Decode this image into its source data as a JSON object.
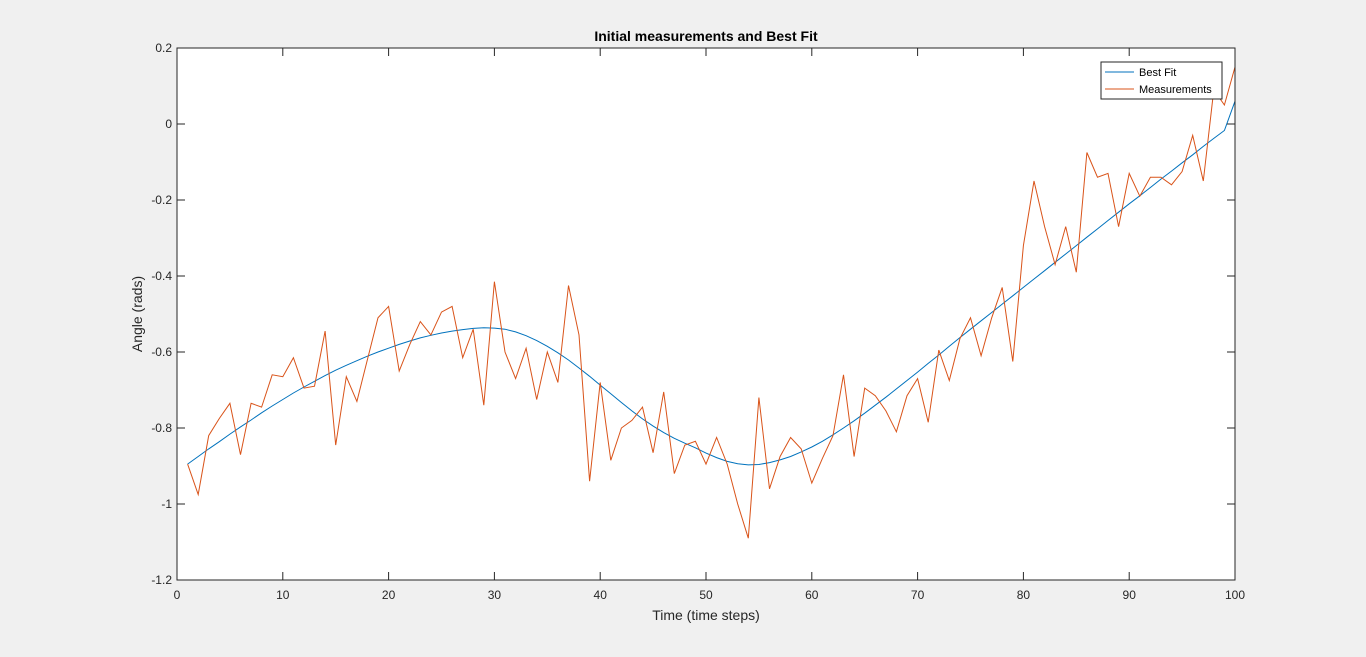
{
  "chart_data": {
    "type": "line",
    "title": "Initial measurements and Best Fit",
    "xlabel": "Time (time steps)",
    "ylabel": "Angle (rads)",
    "xlim": [
      0,
      100
    ],
    "ylim": [
      -1.2,
      0.2
    ],
    "x_ticks": [
      0,
      10,
      20,
      30,
      40,
      50,
      60,
      70,
      80,
      90,
      100
    ],
    "y_ticks": [
      -1.2,
      -1,
      -0.8,
      -0.6,
      -0.4,
      -0.2,
      0,
      0.2
    ],
    "x_tick_labels": [
      "0",
      "10",
      "20",
      "30",
      "40",
      "50",
      "60",
      "70",
      "80",
      "90",
      "100"
    ],
    "y_tick_labels": [
      "-1.2",
      "-1",
      "-0.8",
      "-0.6",
      "-0.4",
      "-0.2",
      "0",
      "0.2"
    ],
    "grid": false,
    "legend_position": "top-right",
    "x": [
      1,
      2,
      3,
      4,
      5,
      6,
      7,
      8,
      9,
      10,
      11,
      12,
      13,
      14,
      15,
      16,
      17,
      18,
      19,
      20,
      21,
      22,
      23,
      24,
      25,
      26,
      27,
      28,
      29,
      30,
      31,
      32,
      33,
      34,
      35,
      36,
      37,
      38,
      39,
      40,
      41,
      42,
      43,
      44,
      45,
      46,
      47,
      48,
      49,
      50,
      51,
      52,
      53,
      54,
      55,
      56,
      57,
      58,
      59,
      60,
      61,
      62,
      63,
      64,
      65,
      66,
      67,
      68,
      69,
      70,
      71,
      72,
      73,
      74,
      75,
      76,
      77,
      78,
      79,
      80,
      81,
      82,
      83,
      84,
      85,
      86,
      87,
      88,
      89,
      90,
      91,
      92,
      93,
      94,
      95,
      96,
      97,
      98,
      99,
      100
    ],
    "series": [
      {
        "name": "Best Fit",
        "color": "#0072bd",
        "values": [
          -0.895,
          -0.875,
          -0.855,
          -0.836,
          -0.816,
          -0.797,
          -0.779,
          -0.76,
          -0.742,
          -0.725,
          -0.708,
          -0.692,
          -0.677,
          -0.662,
          -0.648,
          -0.635,
          -0.623,
          -0.611,
          -0.6,
          -0.59,
          -0.58,
          -0.571,
          -0.563,
          -0.556,
          -0.55,
          -0.545,
          -0.541,
          -0.538,
          -0.536,
          -0.537,
          -0.54,
          -0.547,
          -0.557,
          -0.57,
          -0.585,
          -0.602,
          -0.621,
          -0.642,
          -0.664,
          -0.687,
          -0.71,
          -0.733,
          -0.755,
          -0.776,
          -0.795,
          -0.812,
          -0.827,
          -0.84,
          -0.852,
          -0.866,
          -0.878,
          -0.888,
          -0.894,
          -0.897,
          -0.896,
          -0.891,
          -0.884,
          -0.875,
          -0.863,
          -0.85,
          -0.835,
          -0.818,
          -0.8,
          -0.781,
          -0.761,
          -0.74,
          -0.719,
          -0.697,
          -0.675,
          -0.653,
          -0.63,
          -0.608,
          -0.585,
          -0.562,
          -0.54,
          -0.518,
          -0.496,
          -0.474,
          -0.452,
          -0.43,
          -0.408,
          -0.386,
          -0.364,
          -0.342,
          -0.32,
          -0.298,
          -0.276,
          -0.254,
          -0.232,
          -0.21,
          -0.189,
          -0.167,
          -0.145,
          -0.124,
          -0.102,
          -0.081,
          -0.059,
          -0.038,
          -0.017,
          0.06
        ]
      },
      {
        "name": "Measurements",
        "color": "#d95319",
        "values": [
          -0.895,
          -0.975,
          -0.82,
          -0.775,
          -0.735,
          -0.87,
          -0.735,
          -0.745,
          -0.66,
          -0.665,
          -0.615,
          -0.695,
          -0.69,
          -0.545,
          -0.845,
          -0.665,
          -0.73,
          -0.62,
          -0.51,
          -0.48,
          -0.65,
          -0.58,
          -0.52,
          -0.555,
          -0.495,
          -0.48,
          -0.615,
          -0.54,
          -0.74,
          -0.415,
          -0.6,
          -0.67,
          -0.59,
          -0.725,
          -0.6,
          -0.68,
          -0.425,
          -0.555,
          -0.94,
          -0.68,
          -0.885,
          -0.8,
          -0.78,
          -0.745,
          -0.865,
          -0.705,
          -0.92,
          -0.845,
          -0.835,
          -0.895,
          -0.825,
          -0.895,
          -1.0,
          -1.09,
          -0.72,
          -0.96,
          -0.875,
          -0.825,
          -0.855,
          -0.945,
          -0.88,
          -0.82,
          -0.66,
          -0.875,
          -0.695,
          -0.715,
          -0.755,
          -0.81,
          -0.715,
          -0.67,
          -0.785,
          -0.595,
          -0.675,
          -0.565,
          -0.51,
          -0.61,
          -0.51,
          -0.43,
          -0.625,
          -0.32,
          -0.15,
          -0.27,
          -0.37,
          -0.27,
          -0.39,
          -0.075,
          -0.14,
          -0.13,
          -0.27,
          -0.13,
          -0.19,
          -0.14,
          -0.14,
          -0.16,
          -0.125,
          -0.03,
          -0.15,
          0.09,
          0.05,
          0.15
        ]
      }
    ]
  }
}
